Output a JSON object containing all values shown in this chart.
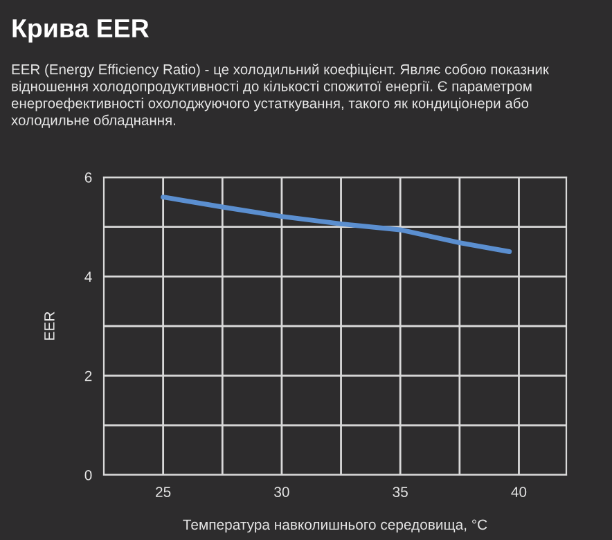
{
  "chart_data": {
    "type": "line",
    "title": "Крива EER",
    "subtitle": "EER (Energy Efficiency Ratio) - це холодильний коефіцієнт. Являє собою показник відношення холодопродуктивності до кількості спожитої енергії. Є параметром енергоефективності охолоджуючого устаткування, такого як кондиціонери або холодильне обладнання.",
    "xlabel": "Температура навколишнього середовища, °C",
    "ylabel": "EER",
    "x": [
      25,
      27.5,
      30,
      32.5,
      35,
      37.5,
      39.6
    ],
    "series": [
      {
        "color": "#5b8fd0",
        "values": [
          5.6,
          5.4,
          5.21,
          5.06,
          4.94,
          4.68,
          4.5
        ]
      }
    ],
    "xlim": [
      22.5,
      42
    ],
    "xticks": [
      25,
      {
        "value": 27.5,
        "label": null
      },
      30,
      {
        "value": 32.5,
        "label": null
      },
      35,
      {
        "value": 37.5,
        "label": null
      },
      40
    ],
    "ylim": [
      0,
      6
    ],
    "yticks": [
      0,
      {
        "value": 1,
        "label": null
      },
      2,
      {
        "value": 3,
        "label": null
      },
      4,
      {
        "value": 5,
        "label": null
      },
      6
    ],
    "grid": true,
    "marker": "none",
    "line_style": "solid",
    "legend": false
  }
}
